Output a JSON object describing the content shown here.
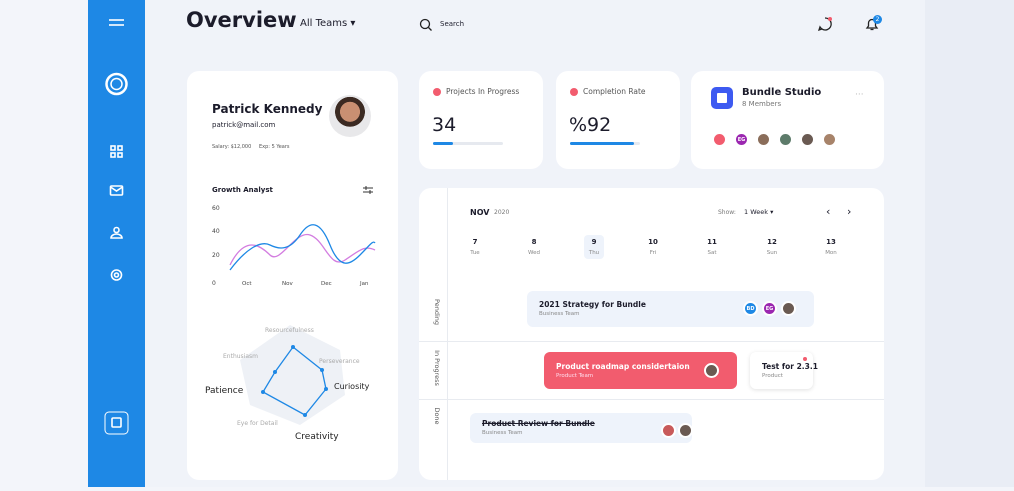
{
  "header": {
    "title": "Overview",
    "team": "All Teams",
    "search": "Search",
    "notifications": 2
  },
  "profile": {
    "name": "Patrick Kennedy",
    "email": "patrick@mail.com",
    "salary": "Salary: $12,000",
    "experience": "Exp: 5 Years",
    "growth": {
      "title": "Growth Analyst",
      "yticks": [
        60,
        40,
        20,
        0
      ],
      "xlabels": [
        "Oct",
        "Nov",
        "Dec",
        "Jan"
      ]
    },
    "radar": [
      "Resourcefulness",
      "Perseverance",
      "Curiosity",
      "Creativity",
      "Eye for Detail",
      "Patience",
      "Enthusiasm"
    ]
  },
  "stats": [
    {
      "label": "Projects In Progress",
      "value": 34
    },
    {
      "label": "Completion Rate",
      "value": "%92"
    }
  ],
  "team": {
    "name": "Bundle Studio",
    "members": "8 Members",
    "initials": "EG"
  },
  "calendar": {
    "month": "NOV",
    "year": 2020,
    "show": "Show:",
    "range": "1 Week",
    "days": [
      {
        "num": 7,
        "name": "Tue"
      },
      {
        "num": 8,
        "name": "Wed"
      },
      {
        "num": 9,
        "name": "Thu"
      },
      {
        "num": 10,
        "name": "Fri"
      },
      {
        "num": 11,
        "name": "Sat"
      },
      {
        "num": 12,
        "name": "Sun"
      },
      {
        "num": 13,
        "name": "Mon"
      }
    ],
    "lanes": [
      "Pending",
      "In Progress",
      "Done"
    ],
    "tasks": [
      {
        "title": "2021 Strategy for Bundle",
        "sub": "Business Team",
        "initials": [
          "BD",
          "EG"
        ]
      },
      {
        "title": "Product roadmap considertaion",
        "sub": "Product Team"
      },
      {
        "title": "Test for 2.3.1",
        "sub": "Product"
      },
      {
        "title": "Product Review for Bundle",
        "sub": "Business Team"
      }
    ]
  }
}
